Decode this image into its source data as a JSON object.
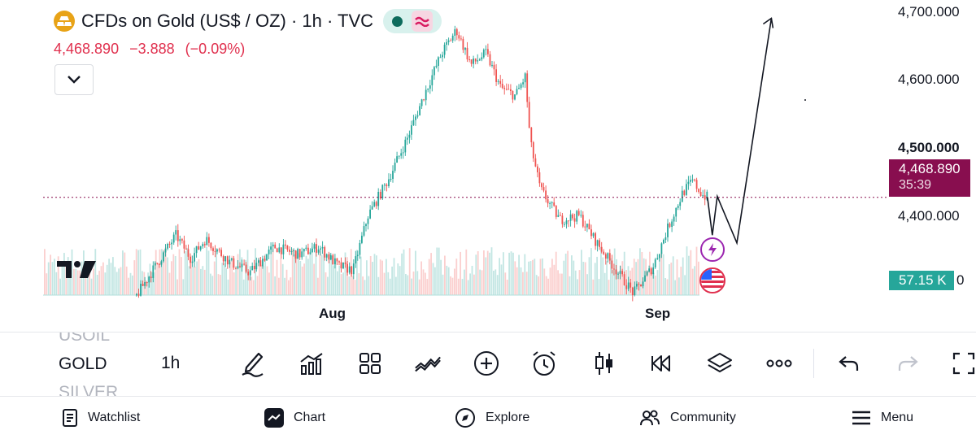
{
  "header": {
    "symbol_title": "CFDs on Gold (US$ / OZ) · 1h · TVC",
    "last_price": "4,468.890",
    "change": "−3.888",
    "change_percent": "(−0.09%)"
  },
  "price_axis": {
    "labels": [
      "4,700.000",
      "4,600.000",
      "4,500.000",
      "4,400.000"
    ],
    "last_price_tag": "4,468.890",
    "countdown": "35:39",
    "volume_tag": "57.15 K",
    "volume_zero": "0"
  },
  "time_axis": {
    "labels": [
      "Aug",
      "Sep"
    ]
  },
  "toolbar": {
    "symbols": [
      "USOIL",
      "GOLD",
      "SILVER"
    ],
    "active_symbol": "GOLD",
    "interval": "1h"
  },
  "nav": {
    "watchlist": "Watchlist",
    "chart": "Chart",
    "explore": "Explore",
    "community": "Community",
    "menu": "Menu"
  },
  "chart_data": {
    "type": "candlestick",
    "symbol": "CFDs on Gold (US$ / OZ)",
    "interval": "1h",
    "ylim": [
      4330,
      4710
    ],
    "y_ticks": [
      4400,
      4500,
      4600,
      4700
    ],
    "last_price": 4468.89,
    "price_path": [
      [
        0,
        4352
      ],
      [
        0.15,
        4345
      ],
      [
        0.19,
        4342
      ],
      [
        0.22,
        4372
      ],
      [
        0.27,
        4420
      ],
      [
        0.3,
        4390
      ],
      [
        0.33,
        4415
      ],
      [
        0.38,
        4385
      ],
      [
        0.42,
        4372
      ],
      [
        0.47,
        4405
      ],
      [
        0.52,
        4395
      ],
      [
        0.56,
        4405
      ],
      [
        0.6,
        4380
      ],
      [
        0.63,
        4375
      ],
      [
        0.66,
        4445
      ],
      [
        0.7,
        4490
      ],
      [
        0.74,
        4545
      ],
      [
        0.78,
        4610
      ],
      [
        0.81,
        4655
      ],
      [
        0.84,
        4685
      ],
      [
        0.87,
        4640
      ],
      [
        0.9,
        4655
      ],
      [
        0.93,
        4610
      ],
      [
        0.96,
        4600
      ],
      [
        0.98,
        4625
      ],
      [
        0.99,
        4540
      ],
      [
        1.01,
        4480
      ],
      [
        1.05,
        4440
      ],
      [
        1.09,
        4445
      ],
      [
        1.12,
        4415
      ],
      [
        1.17,
        4370
      ],
      [
        1.2,
        4345
      ],
      [
        1.24,
        4380
      ],
      [
        1.27,
        4430
      ],
      [
        1.3,
        4475
      ],
      [
        1.32,
        4490
      ],
      [
        1.34,
        4472
      ],
      [
        1.35,
        4469
      ]
    ],
    "projection": [
      [
        1.35,
        4469
      ],
      [
        1.36,
        4420
      ],
      [
        1.37,
        4470
      ],
      [
        1.41,
        4410
      ],
      [
        1.48,
        4700
      ]
    ]
  }
}
